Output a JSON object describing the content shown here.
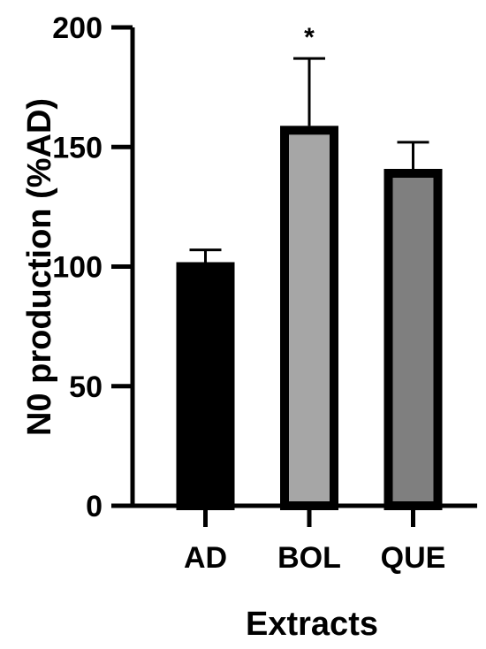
{
  "chart_data": {
    "type": "bar",
    "title": "",
    "xlabel": "Extracts",
    "ylabel": "N0 production (%AD)",
    "ylim": [
      0,
      200
    ],
    "yticks": [
      0,
      50,
      100,
      150,
      200
    ],
    "ytick_labels": [
      "0",
      "50",
      "100",
      "150",
      "200"
    ],
    "grid": false,
    "categories": [
      "AD",
      "BOL",
      "QUE"
    ],
    "series": [
      {
        "values": [
          100,
          157,
          139
        ],
        "errors": [
          7,
          30,
          13
        ],
        "colors": [
          "#000000",
          "#a6a6a6",
          "#7f7f7f"
        ]
      }
    ],
    "annotations": [
      {
        "category": "BOL",
        "text": "*"
      }
    ]
  }
}
